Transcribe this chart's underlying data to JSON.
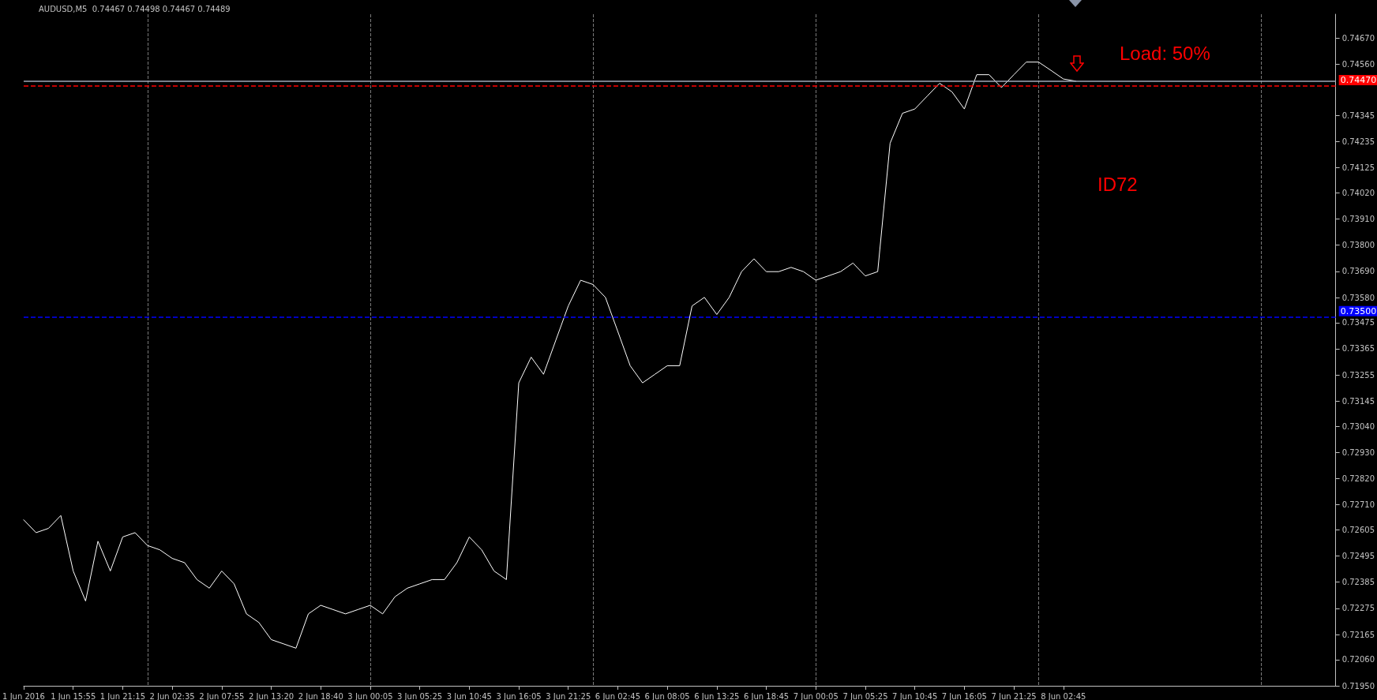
{
  "chart_data": {
    "type": "line",
    "title": "AUDUSD,M5  0.74467 0.74498 0.74467 0.74489",
    "categories": [
      "1 Jun 2016",
      null,
      null,
      null,
      "1 Jun 15:55",
      null,
      null,
      null,
      "1 Jun 21:15",
      null,
      null,
      null,
      "2 Jun 02:35",
      null,
      null,
      null,
      "2 Jun 07:55",
      null,
      null,
      null,
      "2 Jun 13:20",
      null,
      null,
      null,
      "2 Jun 18:40",
      null,
      null,
      null,
      "3 Jun 00:05",
      null,
      null,
      null,
      "3 Jun 05:25",
      null,
      null,
      null,
      "3 Jun 10:45",
      null,
      null,
      null,
      "3 Jun 16:05",
      null,
      null,
      null,
      "3 Jun 21:25",
      null,
      null,
      null,
      "6 Jun 02:45",
      null,
      null,
      null,
      "6 Jun 08:05",
      null,
      null,
      null,
      "6 Jun 13:25",
      null,
      null,
      null,
      "6 Jun 18:45",
      null,
      null,
      null,
      "7 Jun 00:05",
      null,
      null,
      null,
      "7 Jun 05:25",
      null,
      null,
      null,
      "7 Jun 10:45",
      null,
      null,
      null,
      "7 Jun 16:05",
      null,
      null,
      null,
      "7 Jun 21:25",
      null,
      null,
      null,
      "8 Jun 02:45",
      null,
      null,
      null,
      null,
      null,
      null,
      null,
      null,
      null,
      null,
      null,
      null,
      null,
      null,
      null,
      null,
      null,
      null,
      null,
      null,
      null,
      null
    ],
    "series": [
      {
        "color": "#ffffff",
        "values": [
          0.72647,
          0.72593,
          0.72611,
          0.72665,
          0.72432,
          0.72306,
          0.72557,
          0.72432,
          0.72575,
          0.72593,
          0.72539,
          0.72521,
          0.72485,
          0.72467,
          0.72396,
          0.7236,
          0.72432,
          0.72378,
          0.72252,
          0.72216,
          0.72144,
          0.72126,
          0.72108,
          0.72252,
          0.72288,
          0.7227,
          0.72252,
          0.7227,
          0.72288,
          0.72252,
          0.72324,
          0.7236,
          0.72378,
          0.72396,
          0.72396,
          0.72467,
          0.72575,
          0.72521,
          0.72432,
          0.72396,
          0.73222,
          0.7333,
          0.73258,
          0.73402,
          0.73545,
          0.73653,
          0.73635,
          0.73581,
          0.73438,
          0.73294,
          0.73222,
          0.73258,
          0.73294,
          0.73294,
          0.73545,
          0.73581,
          0.73509,
          0.73581,
          0.73689,
          0.73743,
          0.73689,
          0.73689,
          0.73707,
          0.73689,
          0.73653,
          0.73671,
          0.73689,
          0.73725,
          0.73671,
          0.73689,
          0.74228,
          0.74354,
          0.74372,
          0.74426,
          0.7448,
          0.74444,
          0.74372,
          0.74516,
          0.74516,
          0.74462,
          0.74516,
          0.74569,
          0.74569,
          0.74534,
          0.74498,
          0.74489,
          null,
          null,
          null,
          null,
          null,
          null,
          null,
          null,
          null,
          null,
          null,
          null,
          null,
          null,
          null,
          null,
          null,
          null,
          null,
          null,
          null
        ]
      }
    ],
    "ylim": [
      0.7195,
      0.7477
    ],
    "yticks": [
      {
        "value": 0.7195,
        "label": "0.71950"
      },
      {
        "value": 0.7206,
        "label": "0.72060"
      },
      0.72165,
      0.72275,
      0.72385,
      0.72495,
      0.72605,
      {
        "value": 0.7271,
        "label": "0.72710"
      },
      {
        "value": 0.7282,
        "label": "0.72820"
      },
      {
        "value": 0.7293,
        "label": "0.72930"
      },
      {
        "value": 0.7304,
        "label": "0.73040"
      },
      0.73145,
      0.73255,
      0.73365,
      0.73475,
      {
        "value": 0.7358,
        "label": "0.73580"
      },
      {
        "value": 0.7369,
        "label": "0.73690"
      },
      {
        "value": 0.738,
        "label": "0.73800"
      },
      {
        "value": 0.7391,
        "label": "0.73910"
      },
      {
        "value": 0.7402,
        "label": "0.74020"
      },
      0.74125,
      0.74235,
      0.74345,
      {
        "value": 0.7456,
        "label": "0.74560"
      },
      {
        "value": 0.7467,
        "label": "0.74670"
      }
    ],
    "ref_lines": [
      {
        "axis": "y",
        "value": 0.7447,
        "label": "0.74470",
        "color": "#ff0000",
        "line_style": "dashed"
      },
      {
        "axis": "y",
        "value": 0.735,
        "label": "0.73500",
        "color": "#0000ff",
        "line_style": "dashed"
      },
      {
        "axis": "y",
        "value": 0.74489,
        "label": null,
        "color": "#a0a8b8",
        "line_style": "solid"
      }
    ],
    "annotations": [
      "Load: 50%",
      "ID72"
    ],
    "grid": "x",
    "marker": "none",
    "line_style": "solid"
  }
}
